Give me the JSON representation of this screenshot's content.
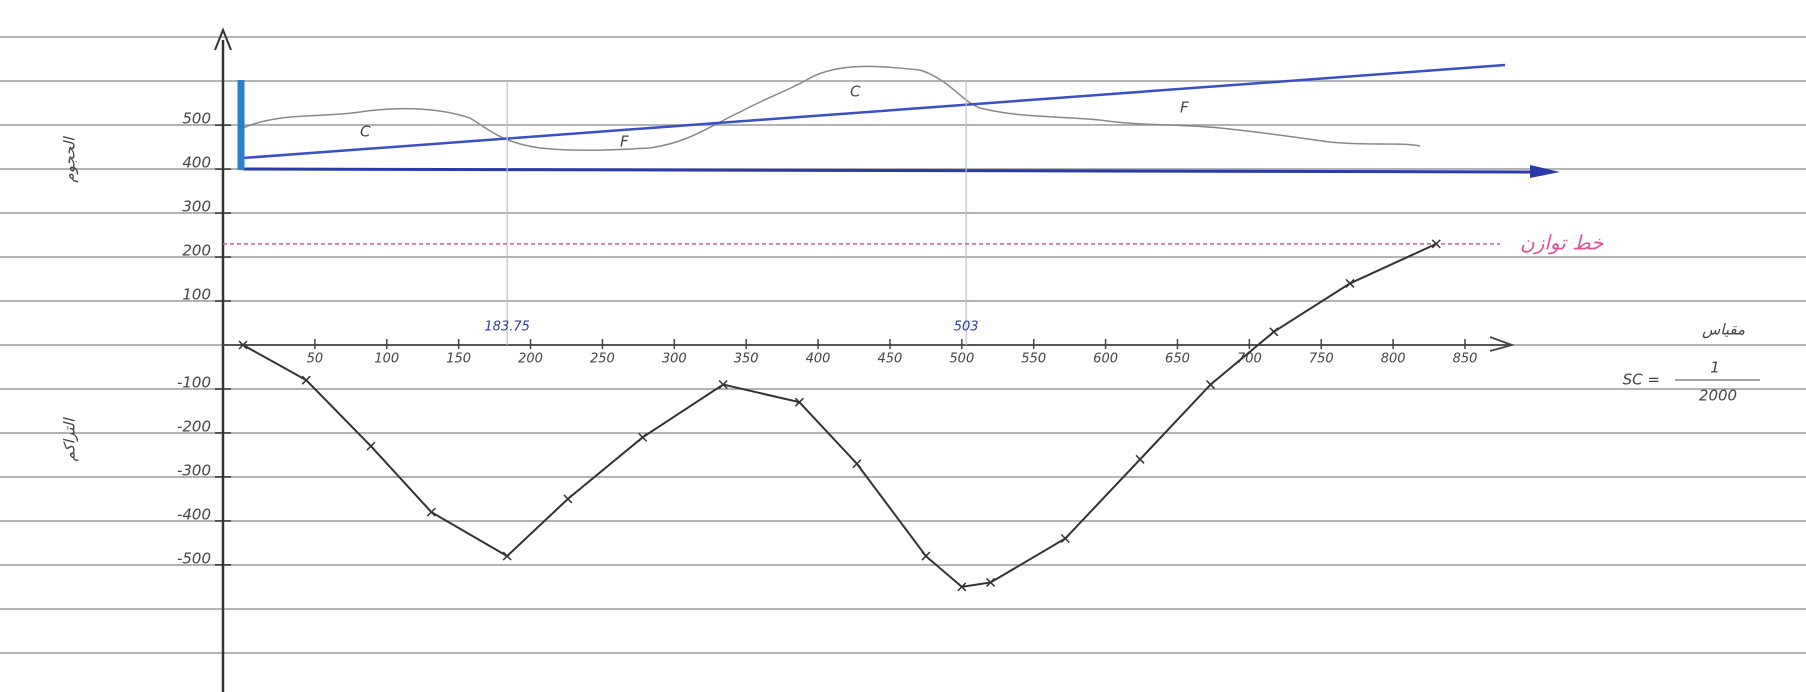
{
  "chart_data": {
    "type": "line",
    "x": [
      0,
      44,
      89,
      131,
      183.75,
      226,
      278,
      334,
      387,
      427,
      475,
      500,
      520,
      572,
      624,
      673,
      717,
      770,
      830
    ],
    "series": [
      {
        "color": "#333333",
        "values": [
          0,
          -80,
          -230,
          -380,
          -480,
          -350,
          -210,
          -90,
          -130,
          -270,
          -480,
          -550,
          -540,
          -440,
          -260,
          -90,
          30,
          140,
          230
        ]
      }
    ],
    "xlim": [
      0,
      850
    ],
    "ylim": [
      -780,
      780
    ],
    "xticks": [
      50,
      100,
      150,
      200,
      250,
      300,
      350,
      400,
      450,
      500,
      550,
      600,
      650,
      700,
      750,
      800,
      850
    ],
    "yticks": [
      500,
      400,
      300,
      200,
      100,
      -100,
      -200,
      -300,
      -400,
      -500
    ],
    "x_markers": [
      183.75,
      503
    ],
    "balance_line": {
      "value": 230,
      "label": "خط توازن",
      "color": "#e0509a"
    },
    "profile_labels": [
      "C",
      "F",
      "C",
      "F"
    ],
    "y_label_top": "الحجوم",
    "y_label_bottom": "التراكم",
    "scale_label": "مقياس",
    "scale_text": "SC =",
    "scale_numerator": "1",
    "scale_denominator": "2000"
  }
}
